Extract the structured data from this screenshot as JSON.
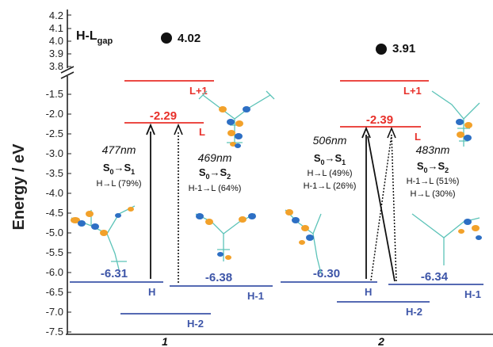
{
  "axis": {
    "ylabel": "Energy / eV",
    "upper_ticks": [
      "4.2",
      "4.1",
      "4.0",
      "3.9",
      "3.8"
    ],
    "lower_ticks": [
      "-1.5",
      "-2.0",
      "-2.5",
      "-3.0",
      "-3.5",
      "-4.0",
      "-4.5",
      "-5.0",
      "-5.5",
      "-6.0",
      "-6.5",
      "-7.0",
      "-7.5"
    ]
  },
  "gap_label": {
    "main": "H-L",
    "sub": "gap"
  },
  "molecules": [
    {
      "name": "1",
      "gap_value": "4.02",
      "levels": [
        {
          "label": "L+1",
          "value": ""
        },
        {
          "label": "L",
          "value": "-2.29"
        },
        {
          "label": "H",
          "value": "-6.31"
        },
        {
          "label": "H-1",
          "value": "-6.38"
        },
        {
          "label": "H-2",
          "value": ""
        }
      ],
      "transitions": [
        {
          "wavelength": "477nm",
          "from": "S",
          "from_sub": "0",
          "to": "S",
          "to_sub": "1",
          "contributions": [
            "H→L (79%)"
          ]
        },
        {
          "wavelength": "469nm",
          "from": "S",
          "from_sub": "0",
          "to": "S",
          "to_sub": "2",
          "contributions": [
            "H-1→L (64%)"
          ]
        }
      ]
    },
    {
      "name": "2",
      "gap_value": "3.91",
      "levels": [
        {
          "label": "L+1",
          "value": ""
        },
        {
          "label": "L",
          "value": "-2.39"
        },
        {
          "label": "H",
          "value": "-6.30"
        },
        {
          "label": "H-1",
          "value": "-6.34"
        },
        {
          "label": "H-2",
          "value": ""
        }
      ],
      "transitions": [
        {
          "wavelength": "506nm",
          "from": "S",
          "from_sub": "0",
          "to": "S",
          "to_sub": "1",
          "contributions": [
            "H→L (49%)",
            "H-1→L (26%)"
          ]
        },
        {
          "wavelength": "483nm",
          "from": "S",
          "from_sub": "0",
          "to": "S",
          "to_sub": "2",
          "contributions": [
            "H-1→L (51%)",
            "H→L (30%)"
          ]
        }
      ]
    }
  ],
  "colors": {
    "lumo": "#e8302a",
    "homo": "#3d55a8",
    "axis": "#222222",
    "lobe_orange": "#f2a12a",
    "lobe_blue": "#2d6fc4",
    "skeleton": "#5cc3b8"
  }
}
